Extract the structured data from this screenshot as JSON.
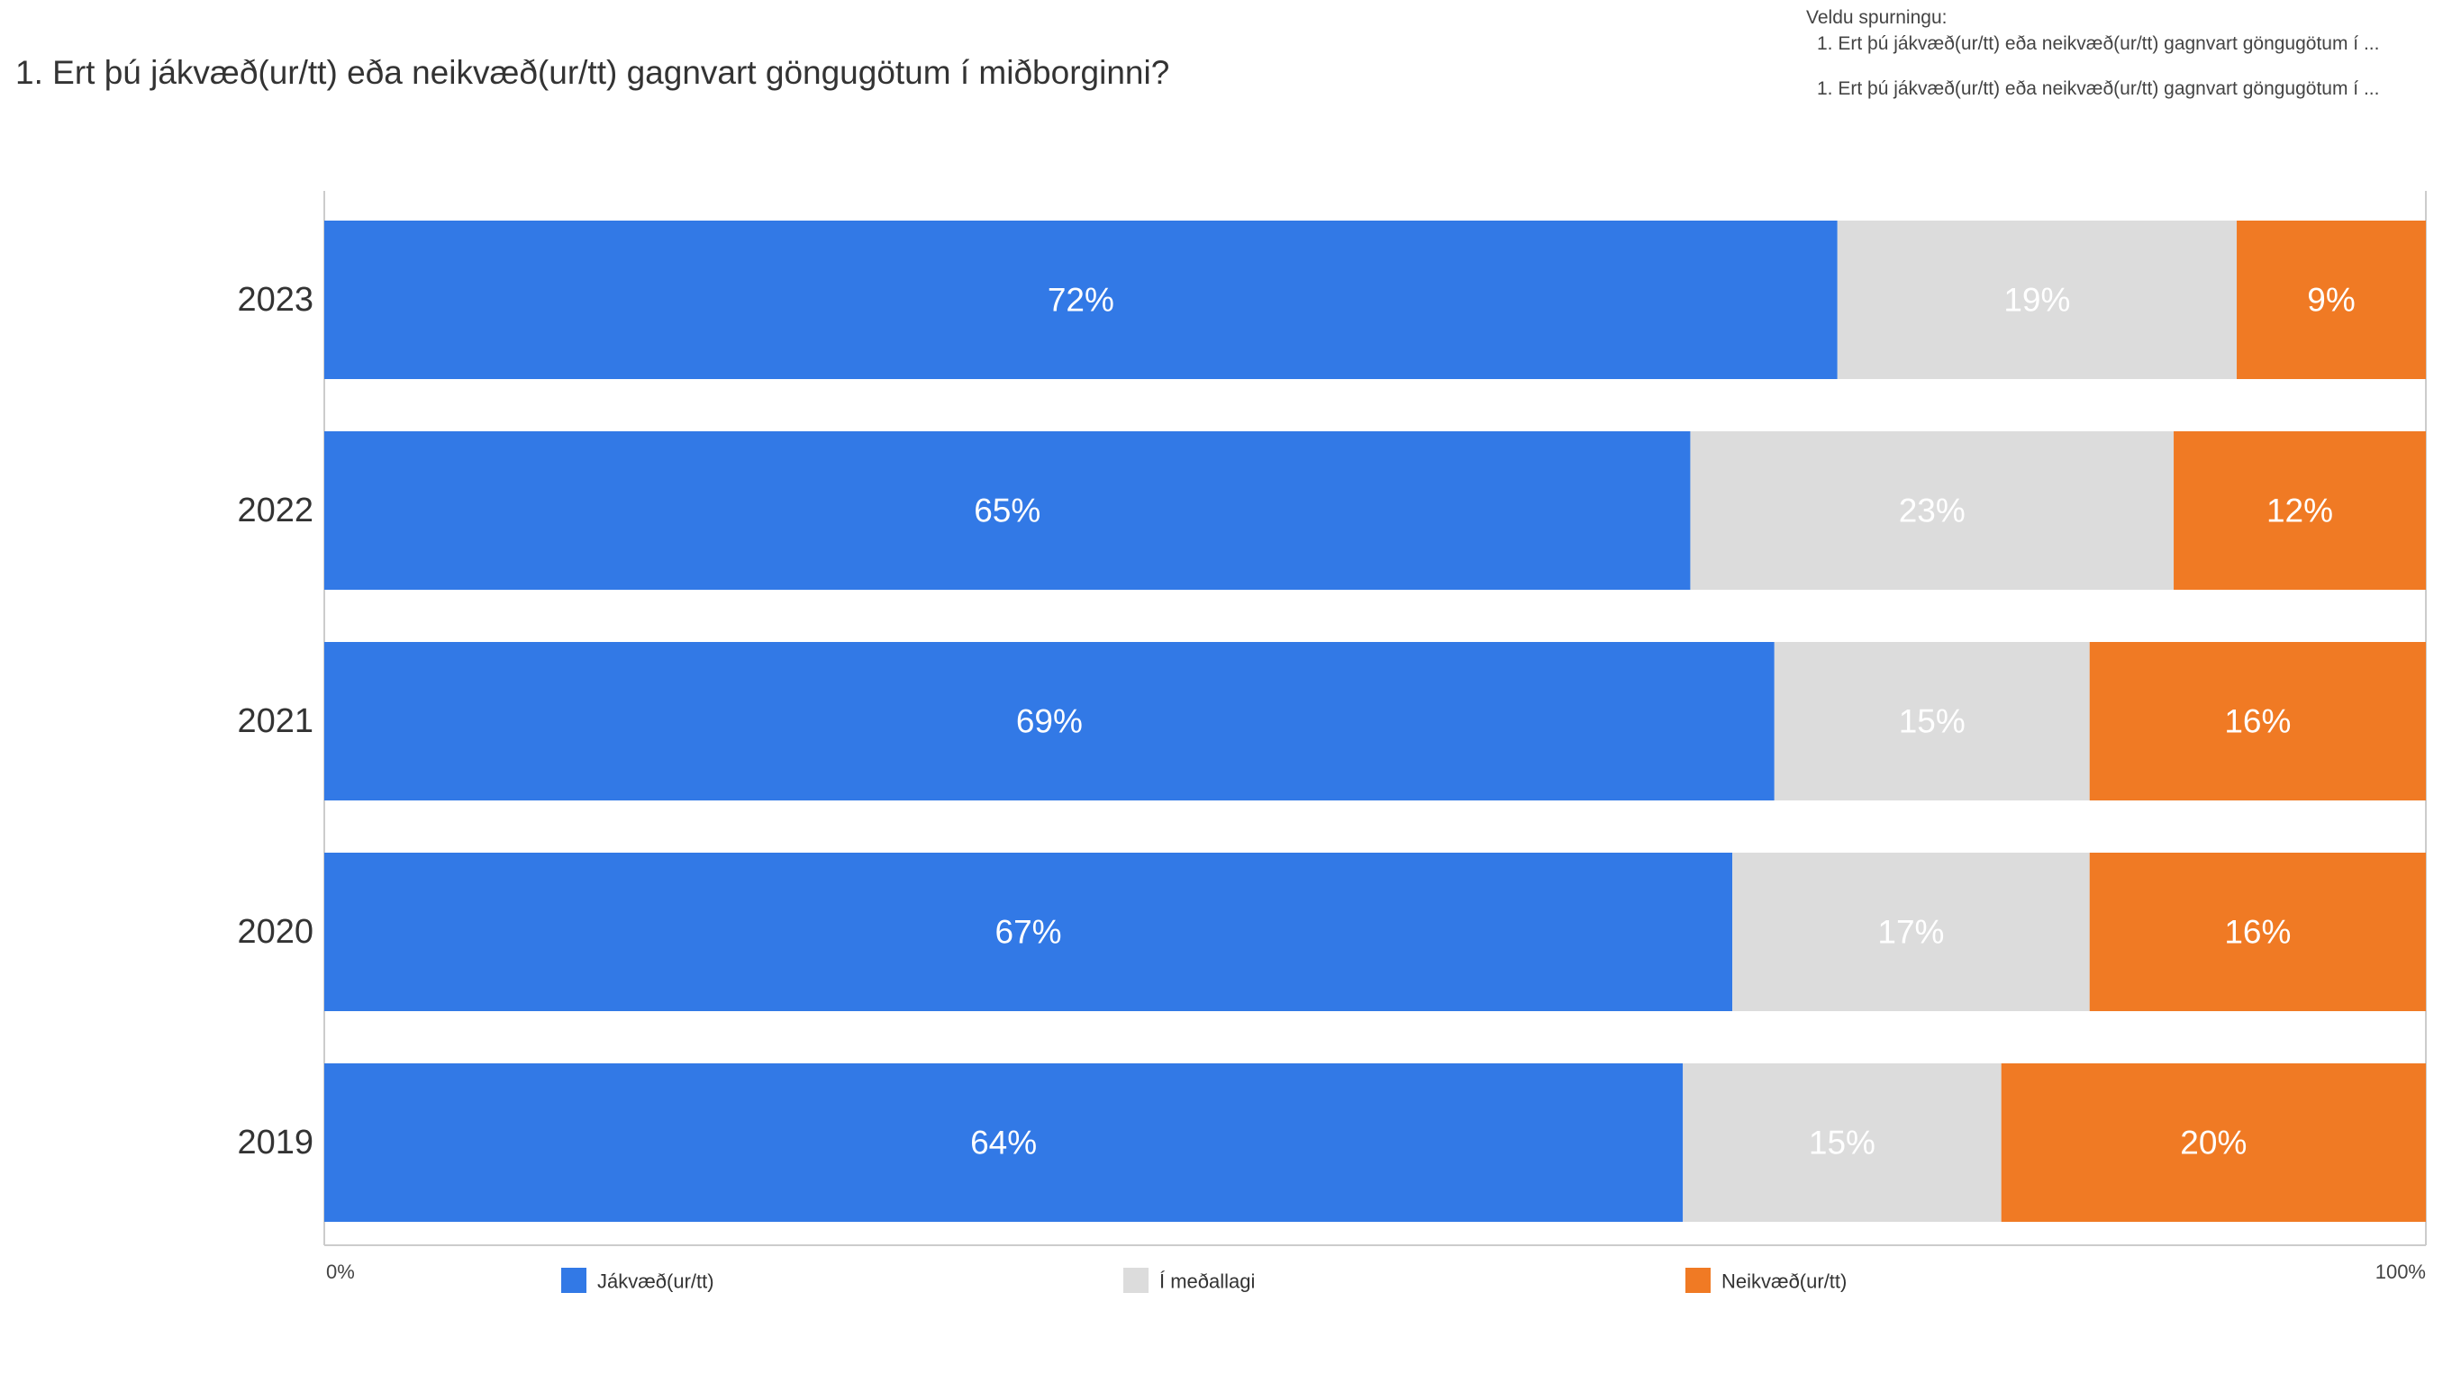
{
  "title": "1. Ert þú jákvæð(ur/tt) eða neikvæð(ur/tt) gagnvart göngugötum í miðborginni?",
  "question_selector": {
    "label": "Veldu spurningu:",
    "items": [
      "1. Ert þú jákvæð(ur/tt) eða neikvæð(ur/tt) gagnvart göngugötum í ...",
      "1. Ert þú jákvæð(ur/tt) eða neikvæð(ur/tt) gagnvart göngugötum í ..."
    ]
  },
  "chart_data": {
    "type": "bar",
    "orientation": "horizontal",
    "stacked": "percent",
    "categories": [
      "2023",
      "2022",
      "2021",
      "2020",
      "2019"
    ],
    "series": [
      {
        "name": "Jákvæð(ur/tt)",
        "color": "#3279e6",
        "values": [
          72,
          65,
          69,
          67,
          64
        ]
      },
      {
        "name": "Í meðallagi",
        "color": "#dcdcdc",
        "values": [
          19,
          23,
          15,
          17,
          15
        ]
      },
      {
        "name": "Neikvæð(ur/tt)",
        "color": "#f07a24",
        "values": [
          9,
          12,
          16,
          16,
          20
        ]
      }
    ],
    "data_label_suffix": "%",
    "xaxis_ticks": [
      "0%",
      "100%"
    ],
    "xlim": [
      0,
      100
    ],
    "legend_position": "bottom",
    "grid": false
  }
}
